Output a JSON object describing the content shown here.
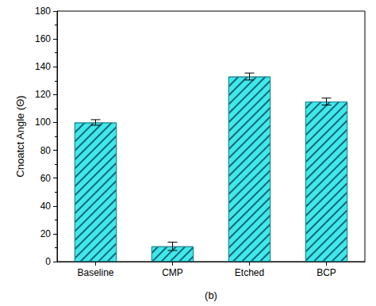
{
  "chart_data": {
    "type": "bar",
    "ylabel": "Cnoatct Angle (Θ)",
    "xlabel": "(b)",
    "categories": [
      "Baseline",
      "CMP",
      "Etched",
      "BCP"
    ],
    "values": [
      100,
      11,
      133,
      115
    ],
    "errors": [
      2,
      3,
      2.5,
      2.5
    ],
    "color": "#40e8ea",
    "ylim": [
      0,
      180
    ],
    "yticks": [
      0,
      20,
      40,
      60,
      80,
      100,
      120,
      140,
      160,
      180
    ]
  }
}
